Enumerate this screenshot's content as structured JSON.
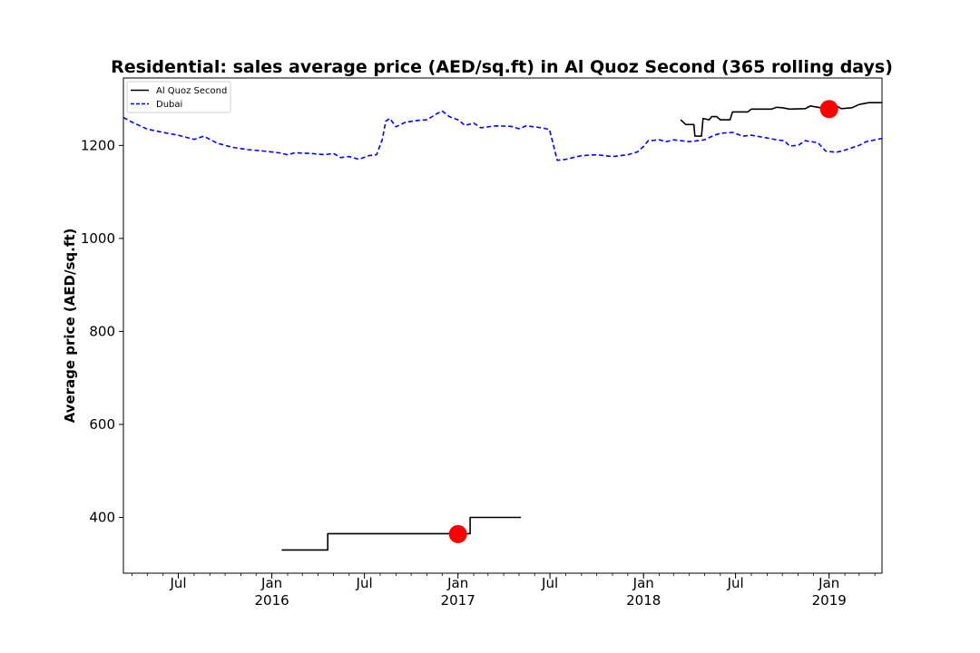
{
  "chart_data": {
    "type": "line",
    "title": "Residential: sales average price (AED/sq.ft) in Al Quoz Second (365 rolling days)",
    "xlabel": "",
    "ylabel": "Average price (AED/sq.ft)",
    "xlim": [
      "2015-03-15",
      "2019-04-15"
    ],
    "ylim": [
      280,
      1345
    ],
    "y_ticks": [
      400,
      600,
      800,
      1000,
      1200
    ],
    "x_ticks": [
      {
        "date": "2015-07-01",
        "label": "Jul",
        "year": ""
      },
      {
        "date": "2016-01-01",
        "label": "Jan",
        "year": "2016"
      },
      {
        "date": "2016-07-01",
        "label": "Jul",
        "year": ""
      },
      {
        "date": "2017-01-01",
        "label": "Jan",
        "year": "2017"
      },
      {
        "date": "2017-07-01",
        "label": "Jul",
        "year": ""
      },
      {
        "date": "2018-01-01",
        "label": "Jan",
        "year": "2018"
      },
      {
        "date": "2018-07-01",
        "label": "Jul",
        "year": ""
      },
      {
        "date": "2019-01-01",
        "label": "Jan",
        "year": "2019"
      }
    ],
    "grid": false,
    "legend_position": "top-left",
    "series": [
      {
        "name": "Al Quoz Second",
        "color": "#000000",
        "style": "solid",
        "segments": [
          [
            [
              "2016-01-20",
              330
            ],
            [
              "2016-04-20",
              330
            ],
            [
              "2016-04-20",
              365
            ],
            [
              "2017-01-10",
              365
            ],
            [
              "2017-01-10",
              365
            ],
            [
              "2017-01-25",
              365
            ],
            [
              "2017-01-25",
              400
            ],
            [
              "2017-05-05",
              400
            ]
          ],
          [
            [
              "2018-03-15",
              1255
            ],
            [
              "2018-03-25",
              1245
            ],
            [
              "2018-04-10",
              1245
            ],
            [
              "2018-04-12",
              1220
            ],
            [
              "2018-04-25",
              1220
            ],
            [
              "2018-04-28",
              1258
            ],
            [
              "2018-05-10",
              1255
            ],
            [
              "2018-05-15",
              1262
            ],
            [
              "2018-05-25",
              1262
            ],
            [
              "2018-06-01",
              1255
            ],
            [
              "2018-06-20",
              1255
            ],
            [
              "2018-06-25",
              1272
            ],
            [
              "2018-07-25",
              1272
            ],
            [
              "2018-08-01",
              1278
            ],
            [
              "2018-09-10",
              1278
            ],
            [
              "2018-09-20",
              1282
            ],
            [
              "2018-10-01",
              1281
            ],
            [
              "2018-10-15",
              1278
            ],
            [
              "2018-11-15",
              1279
            ],
            [
              "2018-11-25",
              1285
            ],
            [
              "2018-12-10",
              1282
            ],
            [
              "2019-01-01",
              1278
            ],
            [
              "2019-01-15",
              1285
            ],
            [
              "2019-01-25",
              1279
            ],
            [
              "2019-02-15",
              1281
            ],
            [
              "2019-03-01",
              1288
            ],
            [
              "2019-03-20",
              1292
            ],
            [
              "2019-04-15",
              1292
            ]
          ]
        ]
      },
      {
        "name": "Dubai",
        "color": "#0000ff",
        "style": "dashed",
        "segments": [
          [
            [
              "2015-03-15",
              1260
            ],
            [
              "2015-04-01",
              1250
            ],
            [
              "2015-05-01",
              1235
            ],
            [
              "2015-06-01",
              1228
            ],
            [
              "2015-07-01",
              1222
            ],
            [
              "2015-08-01",
              1213
            ],
            [
              "2015-08-20",
              1220
            ],
            [
              "2015-09-15",
              1205
            ],
            [
              "2015-10-15",
              1196
            ],
            [
              "2015-11-15",
              1191
            ],
            [
              "2015-12-15",
              1188
            ],
            [
              "2016-01-15",
              1184
            ],
            [
              "2016-02-01",
              1180
            ],
            [
              "2016-02-15",
              1184
            ],
            [
              "2016-03-15",
              1183
            ],
            [
              "2016-04-15",
              1180
            ],
            [
              "2016-05-01",
              1183
            ],
            [
              "2016-05-15",
              1174
            ],
            [
              "2016-06-01",
              1176
            ],
            [
              "2016-06-20",
              1170
            ],
            [
              "2016-07-10",
              1178
            ],
            [
              "2016-07-25",
              1180
            ],
            [
              "2016-08-05",
              1212
            ],
            [
              "2016-08-12",
              1252
            ],
            [
              "2016-08-20",
              1258
            ],
            [
              "2016-09-01",
              1240
            ],
            [
              "2016-09-20",
              1250
            ],
            [
              "2016-10-15",
              1254
            ],
            [
              "2016-11-01",
              1255
            ],
            [
              "2016-11-20",
              1268
            ],
            [
              "2016-12-01",
              1274
            ],
            [
              "2016-12-15",
              1262
            ],
            [
              "2017-01-01",
              1255
            ],
            [
              "2017-01-15",
              1243
            ],
            [
              "2017-02-01",
              1248
            ],
            [
              "2017-02-15",
              1238
            ],
            [
              "2017-03-15",
              1242
            ],
            [
              "2017-04-15",
              1241
            ],
            [
              "2017-05-01",
              1236
            ],
            [
              "2017-05-15",
              1242
            ],
            [
              "2017-06-15",
              1238
            ],
            [
              "2017-06-30",
              1234
            ],
            [
              "2017-07-08",
              1200
            ],
            [
              "2017-07-15",
              1168
            ],
            [
              "2017-08-01",
              1170
            ],
            [
              "2017-09-01",
              1178
            ],
            [
              "2017-10-01",
              1180
            ],
            [
              "2017-11-01",
              1176
            ],
            [
              "2017-12-01",
              1180
            ],
            [
              "2017-12-20",
              1186
            ],
            [
              "2018-01-01",
              1198
            ],
            [
              "2018-01-10",
              1210
            ],
            [
              "2018-02-01",
              1212
            ],
            [
              "2018-02-15",
              1208
            ],
            [
              "2018-03-01",
              1212
            ],
            [
              "2018-04-01",
              1208
            ],
            [
              "2018-05-01",
              1212
            ],
            [
              "2018-05-20",
              1222
            ],
            [
              "2018-06-01",
              1226
            ],
            [
              "2018-06-25",
              1228
            ],
            [
              "2018-07-15",
              1220
            ],
            [
              "2018-08-01",
              1222
            ],
            [
              "2018-09-01",
              1216
            ],
            [
              "2018-09-20",
              1212
            ],
            [
              "2018-10-05",
              1210
            ],
            [
              "2018-10-15",
              1199
            ],
            [
              "2018-11-01",
              1200
            ],
            [
              "2018-11-15",
              1210
            ],
            [
              "2018-12-10",
              1206
            ],
            [
              "2018-12-25",
              1188
            ],
            [
              "2019-01-15",
              1185
            ],
            [
              "2019-02-01",
              1190
            ],
            [
              "2019-03-01",
              1200
            ],
            [
              "2019-03-15",
              1208
            ],
            [
              "2019-04-15",
              1215
            ]
          ]
        ]
      }
    ],
    "markers": [
      {
        "date": "2017-01-01",
        "value": 364,
        "color": "#ff0000"
      },
      {
        "date": "2019-01-01",
        "value": 1278,
        "color": "#ff0000"
      }
    ]
  }
}
